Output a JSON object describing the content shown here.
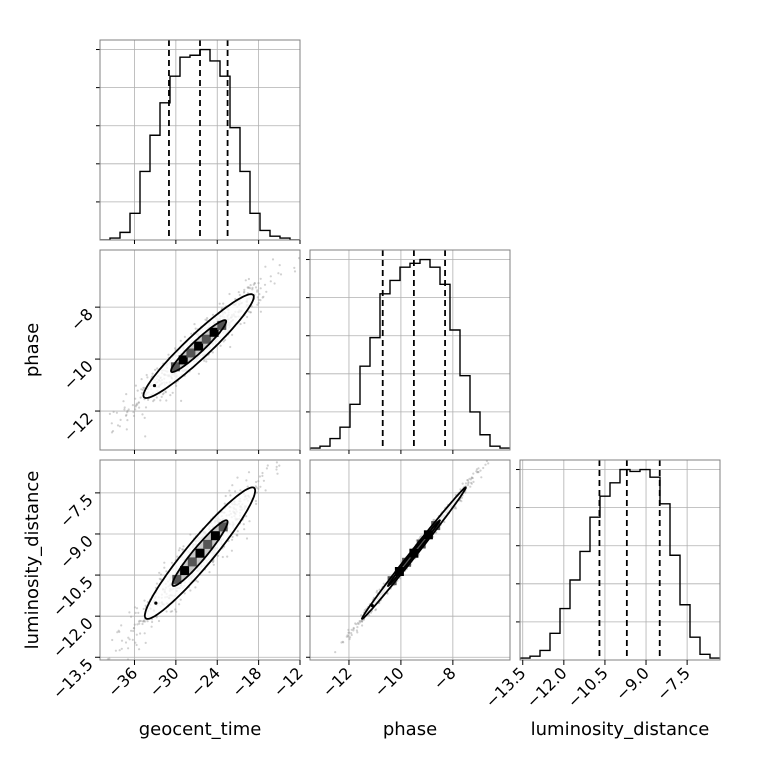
{
  "chart_data": {
    "type": "corner",
    "parameters": [
      "geocent_time",
      "phase",
      "luminosity_distance"
    ],
    "ranges": {
      "geocent_time": [
        -41,
        -12
      ],
      "phase": [
        -13.5,
        -5.8
      ],
      "luminosity_distance": [
        -13.6,
        -6.3
      ]
    },
    "ticks": {
      "geocent_time": [
        -36,
        -30,
        -24,
        -18,
        -12
      ],
      "phase": [
        -12,
        -10,
        -8
      ],
      "luminosity_distance": [
        -13.5,
        -12.0,
        -10.5,
        -9.0,
        -7.5
      ]
    },
    "tick_labels": {
      "geocent_time": [
        "−36",
        "−30",
        "−24",
        "−18",
        "−12"
      ],
      "phase": [
        "−12",
        "−10",
        "−8"
      ],
      "luminosity_distance": [
        "−13.5",
        "−12.0",
        "−10.5",
        "−9.0",
        "−7.5"
      ]
    },
    "quantiles": {
      "geocent_time": [
        -31.0,
        -26.5,
        -22.5
      ],
      "phase": [
        -10.7,
        -9.5,
        -8.3
      ],
      "luminosity_distance": [
        -10.7,
        -9.7,
        -8.5
      ]
    },
    "histograms": {
      "geocent_time": {
        "edges": [
          -41,
          -39.55,
          -38.1,
          -36.65,
          -35.2,
          -33.75,
          -32.3,
          -30.85,
          -29.4,
          -27.95,
          -26.5,
          -25.05,
          -23.6,
          -22.15,
          -20.7,
          -19.25,
          -17.8,
          -16.35,
          -14.9,
          -13.45,
          -12
        ],
        "counts": [
          0.0,
          0.01,
          0.04,
          0.14,
          0.36,
          0.55,
          0.72,
          0.86,
          0.96,
          0.97,
          1.0,
          0.94,
          0.86,
          0.59,
          0.36,
          0.14,
          0.05,
          0.02,
          0.01,
          0.0
        ]
      },
      "phase": {
        "edges": [
          -13.5,
          -13.115,
          -12.73,
          -12.345,
          -11.96,
          -11.575,
          -11.19,
          -10.805,
          -10.42,
          -10.035,
          -9.65,
          -9.265,
          -8.88,
          -8.495,
          -8.11,
          -7.725,
          -7.34,
          -6.955,
          -6.57,
          -6.185,
          -5.8
        ],
        "counts": [
          0.01,
          0.02,
          0.06,
          0.12,
          0.24,
          0.44,
          0.59,
          0.82,
          0.89,
          0.96,
          0.98,
          1.0,
          0.96,
          0.87,
          0.63,
          0.39,
          0.2,
          0.08,
          0.02,
          0.01
        ]
      },
      "luminosity_distance": {
        "edges": [
          -13.6,
          -13.235,
          -12.87,
          -12.505,
          -12.14,
          -11.775,
          -11.41,
          -11.045,
          -10.68,
          -10.315,
          -9.95,
          -9.585,
          -9.22,
          -8.855,
          -8.49,
          -8.125,
          -7.76,
          -7.395,
          -7.03,
          -6.665,
          -6.3
        ],
        "counts": [
          0.01,
          0.02,
          0.05,
          0.14,
          0.27,
          0.42,
          0.57,
          0.75,
          0.86,
          0.93,
          1.0,
          0.99,
          1.0,
          0.96,
          0.82,
          0.55,
          0.29,
          0.12,
          0.03,
          0.01
        ]
      }
    },
    "joint": {
      "phase_vs_geocent_time": {
        "x_param": "geocent_time",
        "y_param": "phase",
        "center": [
          -26.7,
          -9.5
        ],
        "sigma": [
          4.0,
          1.0
        ],
        "correlation": 0.95,
        "levels": [
          1.0,
          2.0
        ]
      },
      "luminosity_distance_vs_geocent_time": {
        "x_param": "geocent_time",
        "y_param": "luminosity_distance",
        "center": [
          -26.5,
          -9.7
        ],
        "sigma": [
          4.0,
          1.2
        ],
        "correlation": 0.95,
        "levels": [
          1.0,
          2.0
        ]
      },
      "luminosity_distance_vs_phase": {
        "x_param": "phase",
        "y_param": "luminosity_distance",
        "center": [
          -9.5,
          -9.7
        ],
        "sigma": [
          1.0,
          1.2
        ],
        "correlation": 0.997,
        "levels": [
          1.0,
          2.0
        ]
      }
    },
    "grid": true,
    "colors": {
      "line": "#000000",
      "grid": "#b0b0b0",
      "frame": "#808080",
      "scatter": "#9a9a9a",
      "density_dark": "#000000",
      "density_mid": "#555555",
      "density_light": "#bdbdbd"
    }
  }
}
